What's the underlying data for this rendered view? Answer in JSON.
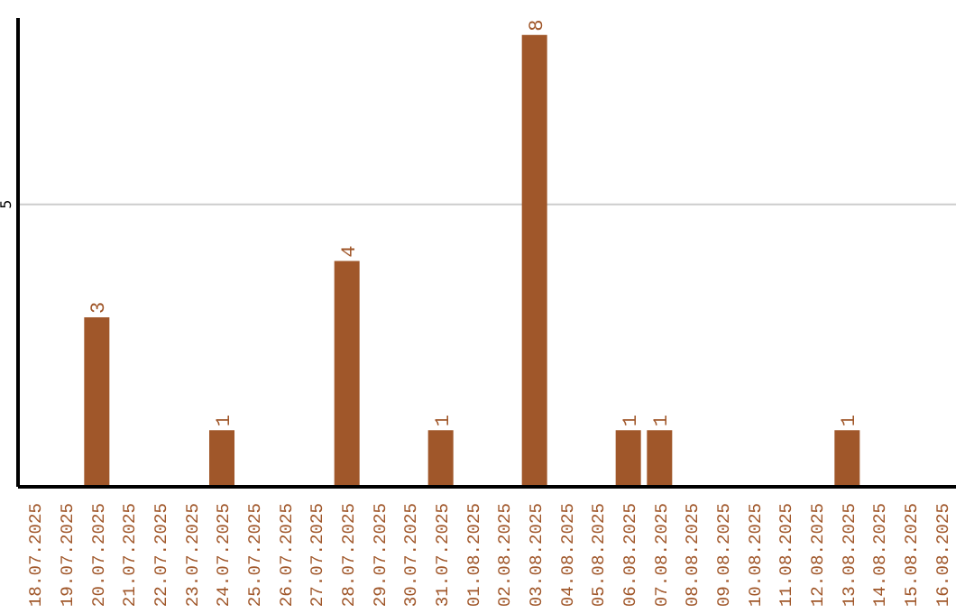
{
  "chart_data": {
    "type": "bar",
    "categories": [
      "18.07.2025",
      "19.07.2025",
      "20.07.2025",
      "21.07.2025",
      "22.07.2025",
      "23.07.2025",
      "24.07.2025",
      "25.07.2025",
      "26.07.2025",
      "27.07.2025",
      "28.07.2025",
      "29.07.2025",
      "30.07.2025",
      "31.07.2025",
      "01.08.2025",
      "02.08.2025",
      "03.08.2025",
      "04.08.2025",
      "05.08.2025",
      "06.08.2025",
      "07.08.2025",
      "08.08.2025",
      "09.08.2025",
      "10.08.2025",
      "11.08.2025",
      "12.08.2025",
      "13.08.2025",
      "14.08.2025",
      "15.08.2025",
      "16.08.2025"
    ],
    "values": [
      null,
      null,
      3,
      null,
      null,
      null,
      1,
      null,
      null,
      null,
      4,
      null,
      null,
      1,
      null,
      null,
      8,
      null,
      null,
      1,
      1,
      null,
      null,
      null,
      null,
      null,
      1,
      null,
      null,
      null
    ],
    "color": "#a0572a",
    "ylim": [
      0,
      8.3
    ],
    "yticks": [
      5
    ],
    "grid": "y",
    "data_labels": true
  }
}
